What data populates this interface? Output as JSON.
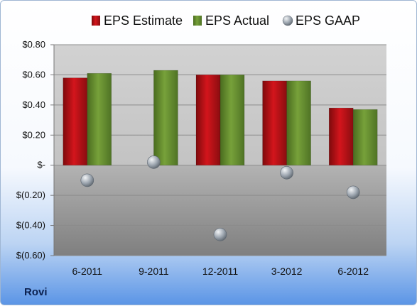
{
  "company": "Rovi",
  "colors": {
    "estimate": "#d3151c",
    "actual": "#77a13a",
    "gaap": "#9aa3ad"
  },
  "chart_data": {
    "type": "bar",
    "categories": [
      "6-2011",
      "9-2011",
      "12-2011",
      "3-2012",
      "6-2012"
    ],
    "series": [
      {
        "name": "EPS Estimate",
        "values": [
          0.58,
          null,
          0.6,
          0.56,
          0.38
        ]
      },
      {
        "name": "EPS Actual",
        "values": [
          0.61,
          0.63,
          0.6,
          0.56,
          0.37
        ]
      },
      {
        "name": "EPS GAAP",
        "values": [
          -0.1,
          0.02,
          -0.46,
          -0.05,
          -0.18
        ],
        "style": "marker"
      }
    ],
    "ylim": [
      -0.6,
      0.8
    ],
    "yticks": [
      0.8,
      0.6,
      0.4,
      0.2,
      0,
      -0.2,
      -0.4,
      -0.6
    ],
    "ytick_labels": [
      "$0.80",
      "$0.60",
      "$0.40",
      "$0.20",
      "$-",
      "$(0.20)",
      "$(0.40)",
      "$(0.60)"
    ],
    "grid": true,
    "legend": "top"
  }
}
